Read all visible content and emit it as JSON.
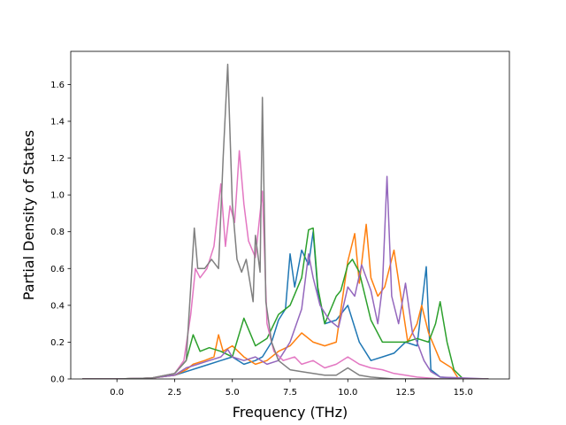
{
  "chart_data": {
    "type": "line",
    "title": "",
    "xlabel": "Frequency (THz)",
    "ylabel": "Partial Density of States",
    "xlim": [
      -2.0,
      17.0
    ],
    "ylim": [
      0.0,
      1.78
    ],
    "xticks": [
      0.0,
      2.5,
      5.0,
      7.5,
      10.0,
      12.5,
      15.0
    ],
    "xtick_labels": [
      "0.0",
      "2.5",
      "5.0",
      "7.5",
      "10.0",
      "12.5",
      "15.0"
    ],
    "yticks": [
      0.0,
      0.2,
      0.4,
      0.6,
      0.8,
      1.0,
      1.2,
      1.4,
      1.6
    ],
    "ytick_labels": [
      "0.0",
      "0.2",
      "0.4",
      "0.6",
      "0.8",
      "1.0",
      "1.2",
      "1.4",
      "1.6"
    ],
    "grid": false,
    "legend": "none",
    "series": [
      {
        "color": "#1f77b4",
        "points": [
          [
            -1.5,
            0
          ],
          [
            0,
            0
          ],
          [
            1.5,
            0.005
          ],
          [
            2.5,
            0.02
          ],
          [
            3.0,
            0.04
          ],
          [
            3.5,
            0.06
          ],
          [
            4.0,
            0.08
          ],
          [
            4.5,
            0.1
          ],
          [
            5.0,
            0.12
          ],
          [
            5.5,
            0.08
          ],
          [
            6.0,
            0.1
          ],
          [
            6.3,
            0.12
          ],
          [
            6.7,
            0.2
          ],
          [
            7.0,
            0.32
          ],
          [
            7.3,
            0.38
          ],
          [
            7.5,
            0.68
          ],
          [
            7.7,
            0.5
          ],
          [
            8.0,
            0.7
          ],
          [
            8.3,
            0.62
          ],
          [
            8.5,
            0.8
          ],
          [
            8.7,
            0.48
          ],
          [
            9.0,
            0.3
          ],
          [
            9.5,
            0.32
          ],
          [
            10.0,
            0.4
          ],
          [
            10.5,
            0.2
          ],
          [
            11.0,
            0.1
          ],
          [
            11.5,
            0.12
          ],
          [
            12.0,
            0.14
          ],
          [
            12.5,
            0.2
          ],
          [
            13.0,
            0.18
          ],
          [
            13.4,
            0.61
          ],
          [
            13.6,
            0.05
          ],
          [
            14.0,
            0.01
          ],
          [
            15.0,
            0
          ],
          [
            16.1,
            0
          ]
        ]
      },
      {
        "color": "#ff7f0e",
        "points": [
          [
            -1.5,
            0
          ],
          [
            0,
            0
          ],
          [
            1.5,
            0.005
          ],
          [
            2.5,
            0.02
          ],
          [
            3.0,
            0.05
          ],
          [
            3.3,
            0.08
          ],
          [
            3.8,
            0.1
          ],
          [
            4.2,
            0.12
          ],
          [
            4.4,
            0.24
          ],
          [
            4.6,
            0.15
          ],
          [
            5.0,
            0.18
          ],
          [
            5.5,
            0.12
          ],
          [
            6.0,
            0.08
          ],
          [
            6.5,
            0.1
          ],
          [
            7.0,
            0.15
          ],
          [
            7.5,
            0.18
          ],
          [
            8.0,
            0.25
          ],
          [
            8.5,
            0.2
          ],
          [
            9.0,
            0.18
          ],
          [
            9.5,
            0.2
          ],
          [
            10.0,
            0.64
          ],
          [
            10.3,
            0.79
          ],
          [
            10.5,
            0.52
          ],
          [
            10.8,
            0.84
          ],
          [
            11.0,
            0.55
          ],
          [
            11.3,
            0.45
          ],
          [
            11.6,
            0.5
          ],
          [
            12.0,
            0.7
          ],
          [
            12.3,
            0.45
          ],
          [
            12.6,
            0.2
          ],
          [
            13.0,
            0.3
          ],
          [
            13.2,
            0.4
          ],
          [
            13.5,
            0.25
          ],
          [
            14.0,
            0.1
          ],
          [
            14.5,
            0.06
          ],
          [
            14.8,
            0
          ],
          [
            16.1,
            0
          ]
        ]
      },
      {
        "color": "#2ca02c",
        "points": [
          [
            -1.5,
            0
          ],
          [
            0,
            0
          ],
          [
            1.5,
            0.005
          ],
          [
            2.5,
            0.03
          ],
          [
            3.0,
            0.1
          ],
          [
            3.3,
            0.24
          ],
          [
            3.6,
            0.15
          ],
          [
            4.0,
            0.17
          ],
          [
            4.5,
            0.15
          ],
          [
            5.0,
            0.12
          ],
          [
            5.5,
            0.33
          ],
          [
            5.8,
            0.24
          ],
          [
            6.0,
            0.18
          ],
          [
            6.5,
            0.22
          ],
          [
            7.0,
            0.35
          ],
          [
            7.5,
            0.4
          ],
          [
            8.0,
            0.55
          ],
          [
            8.3,
            0.81
          ],
          [
            8.5,
            0.82
          ],
          [
            8.7,
            0.5
          ],
          [
            9.0,
            0.3
          ],
          [
            9.5,
            0.45
          ],
          [
            9.7,
            0.48
          ],
          [
            10.0,
            0.62
          ],
          [
            10.2,
            0.65
          ],
          [
            10.5,
            0.58
          ],
          [
            11.0,
            0.32
          ],
          [
            11.5,
            0.2
          ],
          [
            12.0,
            0.2
          ],
          [
            12.5,
            0.2
          ],
          [
            13.0,
            0.22
          ],
          [
            13.5,
            0.2
          ],
          [
            13.8,
            0.3
          ],
          [
            14.0,
            0.42
          ],
          [
            14.3,
            0.2
          ],
          [
            14.6,
            0.05
          ],
          [
            15.0,
            0
          ],
          [
            16.1,
            0
          ]
        ]
      },
      {
        "color": "#9467bd",
        "points": [
          [
            -1.5,
            0
          ],
          [
            0,
            0
          ],
          [
            1.5,
            0.005
          ],
          [
            2.5,
            0.02
          ],
          [
            3.0,
            0.06
          ],
          [
            3.5,
            0.08
          ],
          [
            4.0,
            0.1
          ],
          [
            4.5,
            0.12
          ],
          [
            4.8,
            0.16
          ],
          [
            5.0,
            0.12
          ],
          [
            5.5,
            0.1
          ],
          [
            6.0,
            0.12
          ],
          [
            6.5,
            0.08
          ],
          [
            7.0,
            0.1
          ],
          [
            7.5,
            0.2
          ],
          [
            8.0,
            0.38
          ],
          [
            8.3,
            0.68
          ],
          [
            8.5,
            0.55
          ],
          [
            8.8,
            0.4
          ],
          [
            9.2,
            0.32
          ],
          [
            9.6,
            0.28
          ],
          [
            10.0,
            0.5
          ],
          [
            10.3,
            0.45
          ],
          [
            10.6,
            0.62
          ],
          [
            11.0,
            0.48
          ],
          [
            11.3,
            0.3
          ],
          [
            11.5,
            0.5
          ],
          [
            11.7,
            1.1
          ],
          [
            11.9,
            0.45
          ],
          [
            12.2,
            0.3
          ],
          [
            12.5,
            0.52
          ],
          [
            12.8,
            0.25
          ],
          [
            13.0,
            0.2
          ],
          [
            13.3,
            0.1
          ],
          [
            13.6,
            0.04
          ],
          [
            14.0,
            0.01
          ],
          [
            16.1,
            0
          ]
        ]
      },
      {
        "color": "#e377c2",
        "points": [
          [
            -1.5,
            0
          ],
          [
            0,
            0
          ],
          [
            1.5,
            0.005
          ],
          [
            2.5,
            0.03
          ],
          [
            2.9,
            0.1
          ],
          [
            3.2,
            0.35
          ],
          [
            3.4,
            0.6
          ],
          [
            3.6,
            0.55
          ],
          [
            3.9,
            0.6
          ],
          [
            4.2,
            0.72
          ],
          [
            4.5,
            1.06
          ],
          [
            4.7,
            0.72
          ],
          [
            4.9,
            0.94
          ],
          [
            5.1,
            0.85
          ],
          [
            5.3,
            1.24
          ],
          [
            5.5,
            0.95
          ],
          [
            5.7,
            0.75
          ],
          [
            6.0,
            0.66
          ],
          [
            6.3,
            1.02
          ],
          [
            6.5,
            0.3
          ],
          [
            6.8,
            0.15
          ],
          [
            7.2,
            0.1
          ],
          [
            7.7,
            0.12
          ],
          [
            8.0,
            0.08
          ],
          [
            8.5,
            0.1
          ],
          [
            9.0,
            0.06
          ],
          [
            9.5,
            0.08
          ],
          [
            10.0,
            0.12
          ],
          [
            10.5,
            0.08
          ],
          [
            11.0,
            0.06
          ],
          [
            11.5,
            0.05
          ],
          [
            12.0,
            0.03
          ],
          [
            12.5,
            0.02
          ],
          [
            13.0,
            0.01
          ],
          [
            14.0,
            0
          ],
          [
            16.1,
            0
          ]
        ]
      },
      {
        "color": "#7f7f7f",
        "points": [
          [
            -1.5,
            0
          ],
          [
            0,
            0
          ],
          [
            1.5,
            0.005
          ],
          [
            2.5,
            0.03
          ],
          [
            3.0,
            0.1
          ],
          [
            3.2,
            0.5
          ],
          [
            3.35,
            0.82
          ],
          [
            3.5,
            0.6
          ],
          [
            3.8,
            0.6
          ],
          [
            4.1,
            0.65
          ],
          [
            4.4,
            0.6
          ],
          [
            4.6,
            1.2
          ],
          [
            4.8,
            1.71
          ],
          [
            5.0,
            0.95
          ],
          [
            5.2,
            0.65
          ],
          [
            5.4,
            0.58
          ],
          [
            5.6,
            0.65
          ],
          [
            5.9,
            0.42
          ],
          [
            6.0,
            0.78
          ],
          [
            6.2,
            0.58
          ],
          [
            6.3,
            1.53
          ],
          [
            6.45,
            0.42
          ],
          [
            6.7,
            0.2
          ],
          [
            7.0,
            0.1
          ],
          [
            7.5,
            0.05
          ],
          [
            8.0,
            0.04
          ],
          [
            8.5,
            0.03
          ],
          [
            9.0,
            0.02
          ],
          [
            9.5,
            0.02
          ],
          [
            10.0,
            0.06
          ],
          [
            10.5,
            0.02
          ],
          [
            11.0,
            0.01
          ],
          [
            12.0,
            0
          ],
          [
            16.1,
            0
          ]
        ]
      }
    ]
  }
}
